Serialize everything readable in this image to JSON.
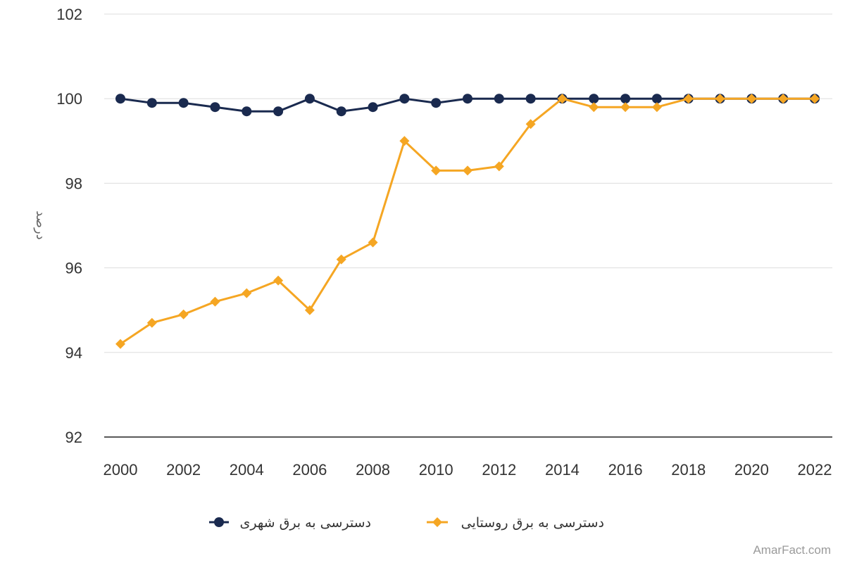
{
  "chart_data": {
    "type": "line",
    "title": "",
    "xlabel": "",
    "ylabel": "درصد",
    "x": [
      2000,
      2001,
      2002,
      2003,
      2004,
      2005,
      2006,
      2007,
      2008,
      2009,
      2010,
      2011,
      2012,
      2013,
      2014,
      2015,
      2016,
      2017,
      2018,
      2019,
      2020,
      2021,
      2022
    ],
    "xticks": [
      "2000",
      "2002",
      "2004",
      "2006",
      "2008",
      "2010",
      "2012",
      "2014",
      "2016",
      "2018",
      "2020",
      "2022"
    ],
    "yticks": [
      "92",
      "94",
      "96",
      "98",
      "100",
      "102"
    ],
    "ylim": [
      92,
      102
    ],
    "grid": true,
    "legend_position": "bottom",
    "series": [
      {
        "name": "دسترسی به برق شهری",
        "color": "#1a2a4f",
        "marker": "circle",
        "values": [
          100,
          99.9,
          99.9,
          99.8,
          99.7,
          99.7,
          100,
          99.7,
          99.8,
          100,
          99.9,
          100,
          100,
          100,
          100,
          100,
          100,
          100,
          100,
          100,
          100,
          100,
          100
        ]
      },
      {
        "name": "دسترسی به برق روستایی",
        "color": "#f5a623",
        "marker": "diamond",
        "values": [
          94.2,
          94.7,
          94.9,
          95.2,
          95.4,
          95.7,
          95,
          96.2,
          96.6,
          99,
          98.3,
          98.3,
          98.4,
          99.4,
          100,
          99.8,
          99.8,
          99.8,
          100,
          100,
          100,
          100,
          100
        ]
      }
    ]
  },
  "watermark": "AmarFact.com"
}
